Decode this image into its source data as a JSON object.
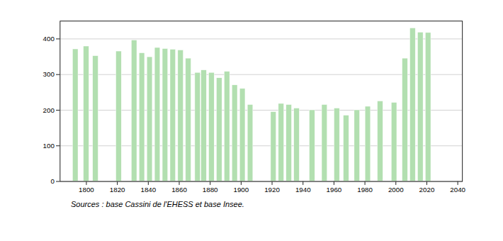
{
  "chart_data": {
    "type": "bar",
    "caption": "Sources : base Cassini de l'EHESS et base Insee.",
    "x": [
      1793,
      1800,
      1806,
      1821,
      1831,
      1836,
      1841,
      1846,
      1851,
      1856,
      1861,
      1866,
      1872,
      1876,
      1881,
      1886,
      1891,
      1896,
      1901,
      1906,
      1921,
      1926,
      1931,
      1936,
      1946,
      1954,
      1962,
      1968,
      1975,
      1982,
      1990,
      1999,
      2006,
      2011,
      2016,
      2021
    ],
    "values": [
      371,
      379,
      352,
      365,
      396,
      360,
      349,
      375,
      372,
      370,
      368,
      345,
      305,
      312,
      305,
      290,
      308,
      270,
      260,
      215,
      195,
      218,
      215,
      205,
      200,
      215,
      205,
      185,
      200,
      210,
      225,
      221,
      345,
      430,
      418,
      417
    ],
    "color": "#b2dfb0",
    "xlim": [
      1783,
      2043
    ],
    "xticks": [
      1800,
      1820,
      1840,
      1860,
      1880,
      1900,
      1920,
      1940,
      1960,
      1980,
      2000,
      2020,
      2040
    ],
    "ylim": [
      0,
      450
    ],
    "yticks": [
      0,
      100,
      200,
      300,
      400
    ],
    "grid": true
  }
}
